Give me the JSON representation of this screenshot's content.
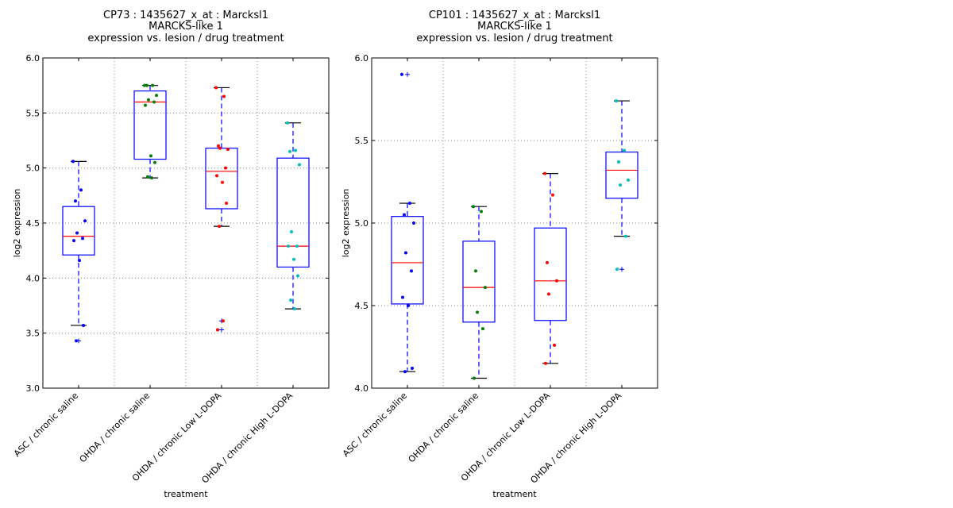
{
  "chart_data": [
    {
      "type": "box",
      "title": [
        "CP73 : 1435627_x_at : Marcksl1",
        "MARCKS-like 1",
        "expression vs. lesion / drug treatment"
      ],
      "xlabel": "treatment",
      "ylabel": "log2 expression",
      "ylim": [
        3.0,
        6.0
      ],
      "yticks": [
        "3.0",
        "3.5",
        "4.0",
        "4.5",
        "5.0",
        "5.5",
        "6.0"
      ],
      "grid": true,
      "categories": [
        "ASC / chronic saline",
        "OHDA / chronic saline",
        "OHDA / chronic Low L-DOPA",
        "OHDA / chronic High L-DOPA"
      ],
      "point_colors": [
        "#0000ff",
        "#008000",
        "#ff0000",
        "#00bfbf"
      ],
      "boxes": [
        {
          "whisker_low": 3.57,
          "q1": 4.21,
          "median": 4.38,
          "q3": 4.65,
          "whisker_high": 5.06,
          "outliers": [
            3.43
          ],
          "points": [
            5.06,
            4.8,
            4.7,
            4.52,
            4.41,
            4.36,
            4.34,
            4.16,
            3.57,
            3.43
          ]
        },
        {
          "whisker_low": 4.91,
          "q1": 5.08,
          "median": 5.6,
          "q3": 5.7,
          "whisker_high": 5.75,
          "outliers": [],
          "points": [
            5.75,
            5.75,
            5.75,
            5.66,
            5.62,
            5.6,
            5.57,
            5.11,
            5.05,
            4.92,
            4.91
          ]
        },
        {
          "whisker_low": 4.47,
          "q1": 4.63,
          "median": 4.97,
          "q3": 5.18,
          "whisker_high": 5.73,
          "outliers": [
            3.61,
            3.53
          ],
          "points": [
            5.73,
            5.65,
            5.2,
            5.17,
            5.18,
            5.0,
            4.93,
            4.87,
            4.68,
            4.47,
            3.61,
            3.53
          ]
        },
        {
          "whisker_low": 3.72,
          "q1": 4.1,
          "median": 4.29,
          "q3": 5.09,
          "whisker_high": 5.41,
          "outliers": [],
          "points": [
            5.41,
            5.16,
            5.15,
            5.03,
            4.42,
            4.29,
            4.29,
            4.17,
            4.02,
            3.8,
            3.72
          ]
        }
      ]
    },
    {
      "type": "box",
      "title": [
        "CP101 : 1435627_x_at : Marcksl1",
        "MARCKS-like 1",
        "expression vs. lesion / drug treatment"
      ],
      "xlabel": "treatment",
      "ylabel": "log2 expression",
      "ylim": [
        4.0,
        6.0
      ],
      "yticks": [
        "4.0",
        "4.5",
        "5.0",
        "5.5",
        "6.0"
      ],
      "grid": true,
      "categories": [
        "ASC / chronic saline",
        "OHDA / chronic saline",
        "OHDA / chronic Low L-DOPA",
        "OHDA / chronic High L-DOPA"
      ],
      "point_colors": [
        "#0000ff",
        "#008000",
        "#ff0000",
        "#00bfbf"
      ],
      "boxes": [
        {
          "whisker_low": 4.1,
          "q1": 4.51,
          "median": 4.76,
          "q3": 5.04,
          "whisker_high": 5.12,
          "outliers": [
            5.9
          ],
          "points": [
            5.9,
            5.12,
            5.05,
            5.0,
            4.82,
            4.71,
            4.55,
            4.5,
            4.12,
            4.1
          ]
        },
        {
          "whisker_low": 4.06,
          "q1": 4.4,
          "median": 4.61,
          "q3": 4.89,
          "whisker_high": 5.1,
          "outliers": [],
          "points": [
            5.1,
            5.07,
            4.71,
            4.61,
            4.46,
            4.36,
            4.06
          ]
        },
        {
          "whisker_low": 4.15,
          "q1": 4.41,
          "median": 4.65,
          "q3": 4.97,
          "whisker_high": 5.3,
          "outliers": [],
          "points": [
            5.3,
            5.17,
            4.76,
            4.65,
            4.57,
            4.26,
            4.15
          ]
        },
        {
          "whisker_low": 4.92,
          "q1": 5.15,
          "median": 5.32,
          "q3": 5.43,
          "whisker_high": 5.74,
          "outliers": [
            4.72
          ],
          "points": [
            5.74,
            5.44,
            5.37,
            5.26,
            5.23,
            4.92,
            4.72
          ]
        }
      ]
    }
  ]
}
